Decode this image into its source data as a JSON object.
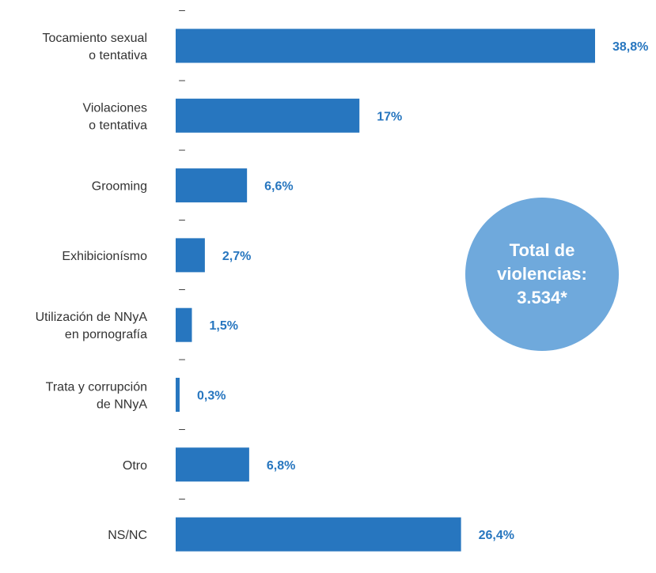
{
  "chart_data": {
    "type": "bar",
    "orientation": "horizontal",
    "categories": [
      "Tocamiento sexual\no tentativa",
      "Violaciones\no tentativa",
      "Grooming",
      "Exhibicionísmo",
      "Utilización de NNyA\nen pornografía",
      "Trata y corrupción\nde NNyA",
      "Otro",
      "NS/NC"
    ],
    "values": [
      38.8,
      17,
      6.6,
      2.7,
      1.5,
      0.3,
      6.8,
      26.4
    ],
    "value_labels": [
      "38,8%",
      "17%",
      "6,6%",
      "2,7%",
      "1,5%",
      "0,3%",
      "6,8%",
      "26,4%"
    ],
    "xlim": [
      0,
      40
    ],
    "separator_glyph": "–",
    "title": "",
    "xlabel": "",
    "ylabel": ""
  },
  "badge": {
    "line1": "Total de",
    "line2": "violencias:",
    "line3": "3.534*"
  },
  "colors": {
    "bar": "#2776bf",
    "value_label": "#2776bf",
    "badge": "#6fa9dc",
    "category_text": "#333333"
  }
}
